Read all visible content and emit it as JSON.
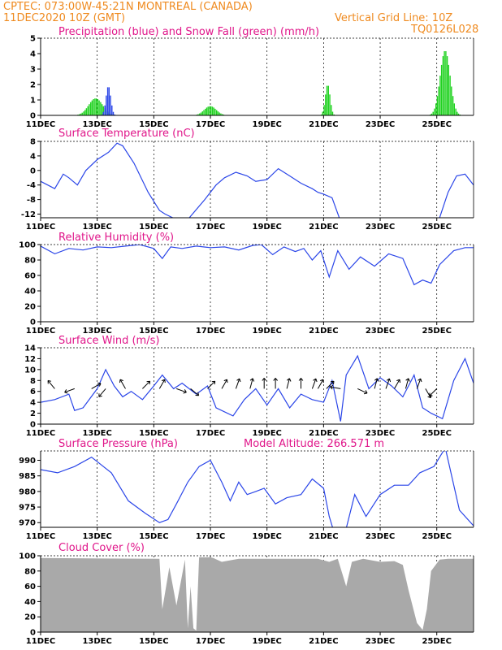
{
  "header": {
    "line1": "CPTEC:   073:00W-45:21N   MONTREAL (CANADA)",
    "line2": "11DEC2020  10Z (GMT)",
    "grid_note": "Vertical Grid Line: 10Z",
    "code": "TQ0126L028"
  },
  "x_ticks": [
    "11DEC",
    "13DEC",
    "15DEC",
    "17DEC",
    "19DEC",
    "21DEC",
    "23DEC",
    "25DEC"
  ],
  "x_range": [
    0,
    15.3
  ],
  "colors": {
    "orange": "#ef8a1f",
    "magenta": "#e0168a",
    "line": "#2b46e8",
    "snow": "#1fd21f",
    "rain": "#2b46e8",
    "cloud": "#a9a9a9"
  },
  "chart_data": [
    {
      "type": "bar",
      "id": "precip",
      "title": "Precipitation (blue) and Snow Fall (green) (mm/h)",
      "ylim": [
        0,
        5
      ],
      "yticks": [
        "0",
        "1",
        "2",
        "3",
        "4",
        "5"
      ],
      "snow_peaks": [
        [
          1.95,
          0.35,
          1.1
        ],
        [
          6.0,
          0.3,
          0.6
        ],
        [
          10.15,
          0.12,
          2.0
        ],
        [
          14.3,
          0.25,
          4.2
        ]
      ],
      "rain_peaks": [
        [
          2.4,
          0.12,
          1.9
        ]
      ]
    },
    {
      "type": "line",
      "id": "temp",
      "title": "Surface Temperature (nC)",
      "ylim": [
        -13,
        8
      ],
      "yticks": [
        "-12",
        "-8",
        "-4",
        "0",
        "4",
        "8"
      ],
      "x": [
        0,
        0.5,
        0.8,
        1.0,
        1.3,
        1.6,
        2.0,
        2.4,
        2.7,
        2.9,
        3.3,
        3.8,
        4.2,
        4.4,
        4.8,
        5.2,
        5.8,
        6.2,
        6.5,
        6.9,
        7.3,
        7.6,
        8.0,
        8.4,
        8.8,
        9.2,
        9.6,
        9.8,
        10.0,
        10.3,
        10.6,
        14.1,
        14.4,
        14.7,
        15.0,
        15.3
      ],
      "y": [
        -3,
        -5,
        -1,
        -2,
        -4,
        0,
        3,
        5,
        7.5,
        6.8,
        2,
        -6,
        -11,
        -12,
        -13.5,
        -13.5,
        -8,
        -4,
        -2,
        -0.5,
        -1.5,
        -3,
        -2.5,
        0.5,
        -1.5,
        -3.5,
        -5,
        -6,
        -6.5,
        -7.5,
        -14,
        -13,
        -6,
        -1.5,
        -1,
        -4
      ]
    },
    {
      "type": "line",
      "id": "rh",
      "title": "Relative Humidity (%)",
      "ylim": [
        0,
        100
      ],
      "yticks": [
        "0",
        "20",
        "40",
        "60",
        "80",
        "100"
      ],
      "x": [
        0,
        0.5,
        1.0,
        1.5,
        2.0,
        2.5,
        3.0,
        3.5,
        4.0,
        4.3,
        4.6,
        5.0,
        5.5,
        6.0,
        6.5,
        7.0,
        7.5,
        7.8,
        8.2,
        8.6,
        9.0,
        9.3,
        9.6,
        9.9,
        10.2,
        10.5,
        10.9,
        11.3,
        11.8,
        12.3,
        12.8,
        13.2,
        13.5,
        13.8,
        14.1,
        14.6,
        15.0,
        15.3
      ],
      "y": [
        98,
        88,
        95,
        93,
        97,
        96,
        98,
        100,
        95,
        82,
        97,
        95,
        98,
        96,
        97,
        93,
        99,
        100,
        87,
        97,
        91,
        95,
        80,
        92,
        58,
        92,
        68,
        84,
        72,
        88,
        82,
        48,
        54,
        50,
        74,
        92,
        96,
        96
      ]
    },
    {
      "type": "line",
      "id": "wind",
      "title": "Surface Wind (m/s)",
      "ylim": [
        0,
        14
      ],
      "yticks": [
        "0",
        "2",
        "4",
        "6",
        "8",
        "10",
        "12",
        "14"
      ],
      "x": [
        0,
        0.5,
        1.0,
        1.2,
        1.5,
        2.0,
        2.3,
        2.6,
        2.9,
        3.2,
        3.6,
        4.0,
        4.3,
        4.7,
        5.0,
        5.5,
        5.9,
        6.2,
        6.8,
        7.2,
        7.6,
        8.0,
        8.4,
        8.8,
        9.2,
        9.6,
        10.0,
        10.3,
        10.6,
        10.8,
        11.2,
        11.6,
        12.0,
        12.4,
        12.8,
        13.2,
        13.5,
        13.8,
        14.2,
        14.6,
        15.0,
        15.3
      ],
      "y": [
        4,
        4.5,
        5.5,
        2.5,
        3,
        6.5,
        10,
        7,
        5,
        6,
        4.5,
        7,
        9,
        6.5,
        7.5,
        5.5,
        7,
        3,
        1.5,
        4.5,
        6.5,
        3.5,
        6.5,
        3,
        5.5,
        4.5,
        4,
        8,
        0.5,
        9,
        12.5,
        6.5,
        8.5,
        7,
        5,
        9,
        3,
        2,
        1,
        8,
        12,
        7.5
      ]
    },
    {
      "type": "line",
      "id": "pressure",
      "title": "Surface Pressure (hPa)",
      "note": "Model Altitude: 266.571  m",
      "ylim": [
        968.5,
        993
      ],
      "yticks": [
        "970",
        "975",
        "980",
        "985",
        "990"
      ],
      "x": [
        0,
        0.6,
        1.2,
        1.8,
        2.5,
        3.1,
        3.7,
        4.2,
        4.5,
        4.8,
        5.2,
        5.6,
        6.0,
        6.4,
        6.7,
        7.0,
        7.3,
        7.6,
        7.9,
        8.3,
        8.7,
        9.2,
        9.6,
        10.0,
        10.2,
        10.4,
        10.6,
        11.1,
        11.5,
        12.0,
        12.5,
        13.0,
        13.4,
        13.9,
        14.3,
        14.8,
        15.3
      ],
      "y": [
        987,
        986,
        988,
        991,
        986,
        977,
        973,
        970,
        971,
        976,
        983,
        988,
        990,
        983,
        977,
        983,
        979,
        980,
        981,
        976,
        978,
        979,
        984,
        981,
        972,
        966,
        961,
        979,
        972,
        979,
        982,
        982,
        986,
        988,
        994,
        974,
        969
      ]
    },
    {
      "type": "area",
      "id": "cloud",
      "title": "Cloud Cover (%)",
      "ylim": [
        0,
        100
      ],
      "yticks": [
        "0",
        "20",
        "40",
        "60",
        "80",
        "100"
      ],
      "x": [
        0,
        4.2,
        4.3,
        4.55,
        4.8,
        5.1,
        5.2,
        5.3,
        5.4,
        5.5,
        5.6,
        6.0,
        6.1,
        6.4,
        7.0,
        9.8,
        10.2,
        10.5,
        10.8,
        11.0,
        11.4,
        12.0,
        12.5,
        12.8,
        13.0,
        13.3,
        13.5,
        13.65,
        13.8,
        14.1,
        14.4,
        15.3
      ],
      "y": [
        97,
        96,
        30,
        85,
        35,
        95,
        5,
        60,
        5,
        2,
        98,
        98,
        97,
        92,
        96,
        96,
        92,
        96,
        60,
        92,
        96,
        92,
        93,
        88,
        55,
        12,
        3,
        30,
        80,
        95,
        96,
        96
      ]
    }
  ]
}
